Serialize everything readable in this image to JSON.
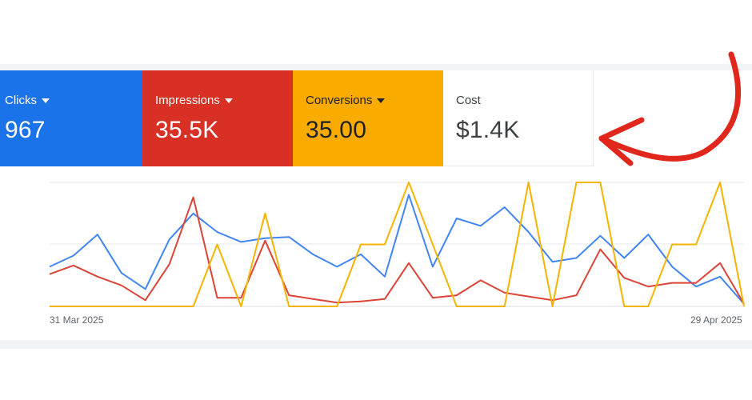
{
  "metrics": [
    {
      "label": "Clicks",
      "value": "967",
      "has_dropdown": true,
      "color": "#1a73e8"
    },
    {
      "label": "Impressions",
      "value": "35.5K",
      "has_dropdown": true,
      "color": "#d93025"
    },
    {
      "label": "Conversions",
      "value": "35.00",
      "has_dropdown": true,
      "color": "#f9ab00"
    },
    {
      "label": "Cost",
      "value": "$1.4K",
      "has_dropdown": false
    }
  ],
  "annotation": {
    "icon": "curved-arrow-icon",
    "color": "#e1261c"
  },
  "chart_data": {
    "type": "line",
    "x_start_label": "31 Mar 2025",
    "x_end_label": "29 Apr 2025",
    "x": [
      "31 Mar 2025",
      "1 Apr 2025",
      "2 Apr 2025",
      "3 Apr 2025",
      "4 Apr 2025",
      "5 Apr 2025",
      "6 Apr 2025",
      "7 Apr 2025",
      "8 Apr 2025",
      "9 Apr 2025",
      "10 Apr 2025",
      "11 Apr 2025",
      "12 Apr 2025",
      "13 Apr 2025",
      "14 Apr 2025",
      "15 Apr 2025",
      "16 Apr 2025",
      "17 Apr 2025",
      "18 Apr 2025",
      "19 Apr 2025",
      "20 Apr 2025",
      "21 Apr 2025",
      "22 Apr 2025",
      "23 Apr 2025",
      "24 Apr 2025",
      "25 Apr 2025",
      "26 Apr 2025",
      "27 Apr 2025",
      "28 Apr 2025",
      "29 Apr 2025"
    ],
    "grid": true,
    "series": [
      {
        "color": "#4285f4",
        "values": [
          32,
          41,
          58,
          27,
          14,
          54,
          75,
          60,
          52,
          55,
          56,
          42,
          32,
          42,
          24,
          90,
          32,
          71,
          65,
          80,
          60,
          36,
          39,
          57,
          39,
          58,
          32,
          16,
          24,
          2
        ]
      },
      {
        "color": "#db4437",
        "values": [
          26,
          33,
          24,
          17,
          5,
          34,
          88,
          7,
          7,
          53,
          9,
          6,
          3,
          4,
          6,
          35,
          7,
          9,
          21,
          11,
          8,
          5,
          9,
          46,
          23,
          16,
          19,
          19,
          35,
          2
        ]
      },
      {
        "color": "#f4b400",
        "values": [
          0,
          0,
          0,
          0,
          0,
          0,
          0,
          50,
          0,
          75,
          0,
          0,
          0,
          50,
          50,
          100,
          50,
          0,
          0,
          0,
          100,
          0,
          100,
          100,
          0,
          0,
          50,
          50,
          100,
          0
        ]
      }
    ]
  }
}
